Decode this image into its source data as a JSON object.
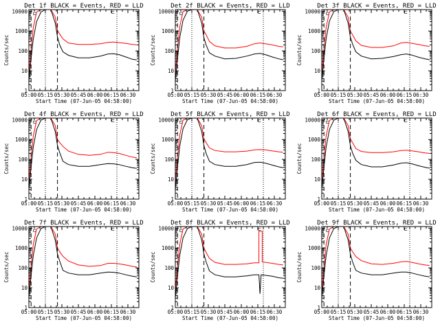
{
  "figure": {
    "time_range": [
      "05:00",
      "06:40"
    ],
    "tick_times": [
      "05:00",
      "05:15",
      "05:30",
      "05:45",
      "06:00",
      "06:15",
      "06:30"
    ],
    "y_ticks": [
      {
        "value": 1,
        "label": "1"
      },
      {
        "value": 10,
        "label": "10"
      },
      {
        "value": 100,
        "label": "100"
      },
      {
        "value": 1000,
        "label": "1000"
      },
      {
        "value": 10000,
        "label": "10000"
      }
    ],
    "ylabel": "Counts/sec",
    "xlabel": "Start Time (07-Jun-05 04:58:00)",
    "y_scale": "log",
    "ylim": [
      1,
      12000
    ],
    "colors": {
      "events": "#000000",
      "lld": "#ff0000",
      "axis": "#000000"
    },
    "marker_glyph": "⊏"
  },
  "chart_data": [
    {
      "type": "line",
      "title": "Det 1f BLACK = Events, RED = LLD",
      "dotted_times": [
        "05:15",
        "06:20"
      ],
      "dashed_times": [
        "05:02",
        "05:26"
      ],
      "series": [
        {
          "name": "Events",
          "color": "#000000",
          "x": [
            "05:00",
            "05:02",
            "05:04",
            "05:07",
            "05:11",
            "05:15",
            "05:20",
            "05:24",
            "05:26",
            "05:28",
            "05:31",
            "05:36",
            "05:45",
            "05:55",
            "06:05",
            "06:12",
            "06:17",
            "06:22",
            "06:28",
            "06:34",
            "06:38"
          ],
          "y": [
            3,
            40,
            400,
            3000,
            9000,
            12000,
            12000,
            2500,
            500,
            200,
            90,
            60,
            45,
            45,
            55,
            70,
            72,
            65,
            50,
            38,
            35
          ]
        },
        {
          "name": "LLD",
          "color": "#ff0000",
          "x": [
            "05:00",
            "05:02",
            "05:04",
            "05:07",
            "05:11",
            "05:15",
            "05:20",
            "05:24",
            "05:26",
            "05:28",
            "05:31",
            "05:36",
            "05:45",
            "05:55",
            "06:05",
            "06:12",
            "06:17",
            "06:22",
            "06:28",
            "06:34",
            "06:38"
          ],
          "y": [
            8,
            120,
            1500,
            9000,
            12000,
            12000,
            12000,
            5000,
            1100,
            700,
            400,
            250,
            210,
            210,
            230,
            270,
            280,
            260,
            240,
            210,
            200
          ]
        }
      ]
    },
    {
      "type": "line",
      "title": "Det 2f BLACK = Events, RED = LLD",
      "dotted_times": [
        "05:15",
        "06:20"
      ],
      "dashed_times": [
        "05:02",
        "05:26"
      ],
      "series": [
        {
          "name": "Events",
          "color": "#000000",
          "x": [
            "05:00",
            "05:02",
            "05:04",
            "05:07",
            "05:11",
            "05:15",
            "05:20",
            "05:24",
            "05:26",
            "05:28",
            "05:31",
            "05:36",
            "05:45",
            "05:55",
            "06:05",
            "06:12",
            "06:17",
            "06:22",
            "06:28",
            "06:34",
            "06:38"
          ],
          "y": [
            3,
            40,
            450,
            3500,
            10000,
            12000,
            12000,
            2500,
            450,
            200,
            80,
            55,
            40,
            42,
            55,
            70,
            75,
            65,
            50,
            40,
            36
          ]
        },
        {
          "name": "LLD",
          "color": "#ff0000",
          "x": [
            "05:00",
            "05:02",
            "05:04",
            "05:07",
            "05:11",
            "05:15",
            "05:20",
            "05:24",
            "05:26",
            "05:28",
            "05:31",
            "05:36",
            "05:45",
            "05:55",
            "06:05",
            "06:12",
            "06:17",
            "06:22",
            "06:28",
            "06:34",
            "06:38"
          ],
          "y": [
            8,
            130,
            1600,
            9500,
            12000,
            12000,
            12000,
            5000,
            1000,
            650,
            300,
            180,
            140,
            140,
            170,
            230,
            250,
            230,
            200,
            170,
            160
          ]
        }
      ]
    },
    {
      "type": "line",
      "title": "Det 3f BLACK = Events, RED = LLD",
      "dotted_times": [
        "05:15",
        "06:20"
      ],
      "dashed_times": [
        "05:02",
        "05:26"
      ],
      "series": [
        {
          "name": "Events",
          "color": "#000000",
          "x": [
            "05:00",
            "05:02",
            "05:04",
            "05:07",
            "05:11",
            "05:15",
            "05:20",
            "05:24",
            "05:26",
            "05:28",
            "05:31",
            "05:36",
            "05:45",
            "05:55",
            "06:05",
            "06:12",
            "06:17",
            "06:22",
            "06:28",
            "06:34",
            "06:38"
          ],
          "y": [
            3,
            40,
            420,
            3200,
            9500,
            12000,
            12000,
            2500,
            500,
            220,
            90,
            55,
            40,
            42,
            52,
            65,
            70,
            62,
            48,
            40,
            36
          ]
        },
        {
          "name": "LLD",
          "color": "#ff0000",
          "x": [
            "05:00",
            "05:02",
            "05:04",
            "05:07",
            "05:11",
            "05:15",
            "05:20",
            "05:24",
            "05:26",
            "05:28",
            "05:31",
            "05:36",
            "05:45",
            "05:55",
            "06:05",
            "06:12",
            "06:17",
            "06:22",
            "06:28",
            "06:34",
            "06:38"
          ],
          "y": [
            8,
            125,
            1550,
            9200,
            12000,
            12000,
            12000,
            5000,
            1000,
            650,
            320,
            190,
            150,
            150,
            180,
            250,
            270,
            240,
            210,
            180,
            170
          ]
        }
      ]
    },
    {
      "type": "line",
      "title": "Det 4f BLACK = Events, RED = LLD",
      "dotted_times": [
        "05:15",
        "06:20"
      ],
      "dashed_times": [
        "05:02",
        "05:26"
      ],
      "series": [
        {
          "name": "Events",
          "color": "#000000",
          "x": [
            "05:00",
            "05:02",
            "05:04",
            "05:07",
            "05:11",
            "05:15",
            "05:20",
            "05:24",
            "05:26",
            "05:28",
            "05:31",
            "05:36",
            "05:45",
            "05:55",
            "06:05",
            "06:12",
            "06:17",
            "06:22",
            "06:28",
            "06:34",
            "06:38"
          ],
          "y": [
            3,
            40,
            420,
            3200,
            9500,
            12000,
            12000,
            2500,
            500,
            220,
            80,
            55,
            45,
            45,
            55,
            62,
            60,
            55,
            45,
            38,
            35
          ]
        },
        {
          "name": "LLD",
          "color": "#ff0000",
          "x": [
            "05:00",
            "05:02",
            "05:04",
            "05:07",
            "05:11",
            "05:15",
            "05:20",
            "05:24",
            "05:26",
            "05:28",
            "05:31",
            "05:36",
            "05:45",
            "05:55",
            "06:05",
            "06:12",
            "06:17",
            "06:22",
            "06:28",
            "06:34",
            "06:38"
          ],
          "y": [
            8,
            120,
            1500,
            9000,
            12000,
            12000,
            12000,
            5000,
            1000,
            700,
            450,
            260,
            180,
            160,
            180,
            230,
            220,
            200,
            160,
            130,
            120
          ]
        }
      ]
    },
    {
      "type": "line",
      "title": "Det 5f BLACK = Events, RED = LLD",
      "dotted_times": [
        "05:15",
        "06:20"
      ],
      "dashed_times": [
        "05:02",
        "05:26"
      ],
      "series": [
        {
          "name": "Events",
          "color": "#000000",
          "x": [
            "05:00",
            "05:02",
            "05:04",
            "05:07",
            "05:11",
            "05:15",
            "05:20",
            "05:24",
            "05:26",
            "05:28",
            "05:31",
            "05:36",
            "05:45",
            "05:55",
            "06:05",
            "06:12",
            "06:17",
            "06:22",
            "06:28",
            "06:34",
            "06:38"
          ],
          "y": [
            3,
            40,
            450,
            3500,
            10000,
            12000,
            12000,
            2500,
            500,
            200,
            80,
            55,
            45,
            45,
            55,
            70,
            72,
            65,
            52,
            42,
            38
          ]
        },
        {
          "name": "LLD",
          "color": "#ff0000",
          "x": [
            "05:00",
            "05:02",
            "05:04",
            "05:07",
            "05:11",
            "05:15",
            "05:20",
            "05:24",
            "05:26",
            "05:28",
            "05:31",
            "05:36",
            "05:45",
            "05:55",
            "06:05",
            "06:12",
            "06:17",
            "06:22",
            "06:28",
            "06:34",
            "06:38"
          ],
          "y": [
            8,
            130,
            1600,
            9500,
            12000,
            12000,
            12000,
            5000,
            1100,
            700,
            380,
            280,
            240,
            240,
            260,
            300,
            310,
            300,
            270,
            240,
            230
          ]
        }
      ]
    },
    {
      "type": "line",
      "title": "Det 6f BLACK = Events, RED = LLD",
      "dotted_times": [
        "05:15",
        "06:20"
      ],
      "dashed_times": [
        "05:02",
        "05:26"
      ],
      "series": [
        {
          "name": "Events",
          "color": "#000000",
          "x": [
            "05:00",
            "05:02",
            "05:04",
            "05:07",
            "05:11",
            "05:15",
            "05:20",
            "05:24",
            "05:26",
            "05:28",
            "05:31",
            "05:36",
            "05:45",
            "05:55",
            "06:05",
            "06:12",
            "06:17",
            "06:22",
            "06:28",
            "06:34",
            "06:38"
          ],
          "y": [
            3,
            40,
            420,
            3200,
            9500,
            12000,
            12000,
            2500,
            500,
            210,
            90,
            55,
            42,
            42,
            52,
            65,
            68,
            60,
            48,
            40,
            36
          ]
        },
        {
          "name": "LLD",
          "color": "#ff0000",
          "x": [
            "05:00",
            "05:02",
            "05:04",
            "05:07",
            "05:11",
            "05:15",
            "05:20",
            "05:24",
            "05:26",
            "05:28",
            "05:31",
            "05:36",
            "05:45",
            "05:55",
            "06:05",
            "06:12",
            "06:17",
            "06:22",
            "06:28",
            "06:34",
            "06:38"
          ],
          "y": [
            8,
            125,
            1550,
            9200,
            12000,
            12000,
            12000,
            5000,
            1100,
            700,
            350,
            250,
            220,
            220,
            240,
            280,
            290,
            270,
            240,
            210,
            200
          ]
        }
      ]
    },
    {
      "type": "line",
      "title": "Det 7f BLACK = Events, RED = LLD",
      "dotted_times": [
        "05:15",
        "06:20"
      ],
      "dashed_times": [
        "05:02",
        "05:26"
      ],
      "series": [
        {
          "name": "Events",
          "color": "#000000",
          "x": [
            "05:00",
            "05:02",
            "05:04",
            "05:07",
            "05:11",
            "05:15",
            "05:20",
            "05:24",
            "05:26",
            "05:28",
            "05:31",
            "05:36",
            "05:45",
            "05:55",
            "06:05",
            "06:12",
            "06:17",
            "06:22",
            "06:28",
            "06:34",
            "06:38"
          ],
          "y": [
            3,
            40,
            420,
            3200,
            9500,
            12000,
            12000,
            2500,
            500,
            220,
            75,
            55,
            45,
            45,
            55,
            62,
            60,
            55,
            45,
            38,
            35
          ]
        },
        {
          "name": "LLD",
          "color": "#ff0000",
          "x": [
            "05:00",
            "05:02",
            "05:04",
            "05:07",
            "05:11",
            "05:15",
            "05:20",
            "05:24",
            "05:26",
            "05:28",
            "05:31",
            "05:36",
            "05:45",
            "05:55",
            "06:05",
            "06:12",
            "06:17",
            "06:22",
            "06:28",
            "06:34",
            "06:38"
          ],
          "y": [
            8,
            120,
            1500,
            9000,
            12000,
            12000,
            12000,
            5000,
            1000,
            650,
            380,
            220,
            140,
            120,
            130,
            170,
            170,
            160,
            140,
            120,
            110
          ]
        }
      ]
    },
    {
      "type": "line",
      "title": "Det 8f BLACK = Events, RED = LLD",
      "dotted_times": [
        "05:15",
        "06:20"
      ],
      "dashed_times": [
        "05:02",
        "05:26"
      ],
      "series": [
        {
          "name": "Events",
          "color": "#000000",
          "x": [
            "05:00",
            "05:02",
            "05:04",
            "05:07",
            "05:11",
            "05:15",
            "05:20",
            "05:24",
            "05:26",
            "05:28",
            "05:31",
            "05:36",
            "05:45",
            "05:55",
            "06:05",
            "06:12",
            "06:16",
            "06:17",
            "06:18",
            "06:22",
            "06:28",
            "06:34",
            "06:38"
          ],
          "y": [
            3,
            40,
            420,
            3200,
            9500,
            12000,
            12000,
            2500,
            500,
            200,
            70,
            45,
            35,
            35,
            40,
            45,
            45,
            5,
            45,
            42,
            38,
            32,
            30
          ]
        },
        {
          "name": "LLD",
          "color": "#ff0000",
          "x": [
            "05:00",
            "05:02",
            "05:04",
            "05:07",
            "05:11",
            "05:15",
            "05:20",
            "05:24",
            "05:26",
            "05:28",
            "05:31",
            "05:36",
            "05:45",
            "05:55",
            "06:05",
            "06:12",
            "06:16",
            "06:16",
            "06:19",
            "06:19",
            "06:22",
            "06:28",
            "06:34",
            "06:38"
          ],
          "y": [
            8,
            120,
            1500,
            9000,
            12000,
            12000,
            12000,
            5000,
            1000,
            600,
            300,
            190,
            150,
            150,
            160,
            180,
            180,
            7000,
            7000,
            200,
            190,
            170,
            150,
            140
          ]
        }
      ]
    },
    {
      "type": "line",
      "title": "Det 9f BLACK = Events, RED = LLD",
      "dotted_times": [
        "05:15",
        "06:20"
      ],
      "dashed_times": [
        "05:02",
        "05:26"
      ],
      "series": [
        {
          "name": "Events",
          "color": "#000000",
          "x": [
            "05:00",
            "05:02",
            "05:04",
            "05:07",
            "05:11",
            "05:15",
            "05:20",
            "05:24",
            "05:26",
            "05:28",
            "05:31",
            "05:36",
            "05:45",
            "05:55",
            "06:05",
            "06:12",
            "06:17",
            "06:22",
            "06:28",
            "06:34",
            "06:38"
          ],
          "y": [
            3,
            40,
            420,
            3200,
            9500,
            12000,
            12000,
            2500,
            500,
            200,
            75,
            55,
            45,
            45,
            55,
            62,
            62,
            55,
            45,
            38,
            35
          ]
        },
        {
          "name": "LLD",
          "color": "#ff0000",
          "x": [
            "05:00",
            "05:02",
            "05:04",
            "05:07",
            "05:11",
            "05:15",
            "05:20",
            "05:24",
            "05:26",
            "05:28",
            "05:31",
            "05:36",
            "05:45",
            "05:55",
            "06:05",
            "06:12",
            "06:17",
            "06:22",
            "06:28",
            "06:34",
            "06:38"
          ],
          "y": [
            8,
            120,
            1500,
            9000,
            12000,
            12000,
            12000,
            5000,
            1000,
            650,
            370,
            230,
            160,
            150,
            170,
            200,
            210,
            190,
            160,
            140,
            130
          ]
        }
      ]
    }
  ]
}
